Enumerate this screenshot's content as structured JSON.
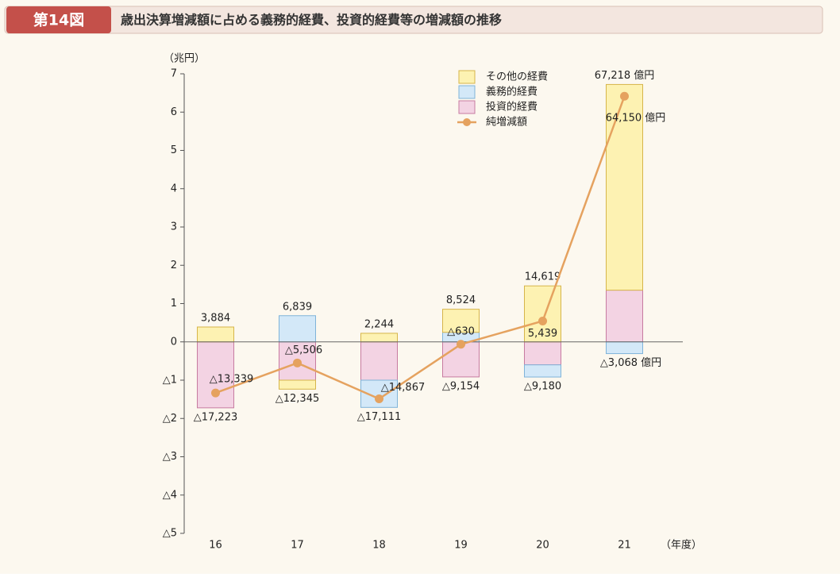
{
  "header": {
    "figure": "第14図",
    "title": "歳出決算増減額に占める義務的経費、投資的経費等の増減額の推移"
  },
  "chart_data": {
    "type": "stacked-bar-line",
    "y_unit": "（兆円）",
    "x_unit": "（年度）",
    "categories": [
      "16",
      "17",
      "18",
      "19",
      "20",
      "21"
    ],
    "ylim": [
      -5,
      7
    ],
    "yticks": [
      7,
      6,
      5,
      4,
      3,
      2,
      1,
      0,
      {
        "value": -1,
        "label": "△1"
      },
      {
        "value": -2,
        "label": "△2"
      },
      {
        "value": -3,
        "label": "△3"
      },
      {
        "value": -4,
        "label": "△4"
      },
      {
        "value": -5,
        "label": "△5"
      }
    ],
    "series": [
      {
        "name": "投資的経費",
        "color": "#f3d3e3",
        "stroke": "#c77ba0",
        "values": [
          -1.7223,
          -1.0,
          -1.0,
          -0.9154,
          -0.6,
          1.35
        ]
      },
      {
        "name": "義務的経費",
        "color": "#d3e8f8",
        "stroke": "#7fb3d9",
        "values": [
          0,
          0.6839,
          -0.7111,
          0.25,
          -0.318,
          -0.3068
        ]
      },
      {
        "name": "その他の経費",
        "color": "#fdf2b2",
        "stroke": "#d6b54a",
        "values": [
          0.3884,
          -0.2345,
          0.2244,
          0.6024,
          1.4619,
          5.3718
        ]
      }
    ],
    "positive_totals": {
      "values": [
        0.3884,
        0.6839,
        0.2244,
        0.8524,
        1.4619,
        6.7218
      ],
      "value_labels": [
        "3,884",
        "6,839",
        "2,244",
        "8,524",
        "14,619",
        "67,218 億円"
      ]
    },
    "negative_totals": {
      "values": [
        -1.7223,
        -1.2345,
        -1.7111,
        -0.9154,
        -0.918,
        -0.3068
      ],
      "value_labels": [
        "△17,223",
        "△12,345",
        "△17,111",
        "△9,154",
        "△9,180",
        "△3,068 億円"
      ]
    },
    "line": {
      "name": "純増減額",
      "color": "#e5a25f",
      "values": [
        -1.3339,
        -0.5506,
        -1.4867,
        -0.063,
        0.5439,
        6.415
      ],
      "value_labels": [
        "△13,339",
        "△5,506",
        "△14,867",
        "△630",
        "5,439",
        "64,150 億円"
      ]
    }
  }
}
